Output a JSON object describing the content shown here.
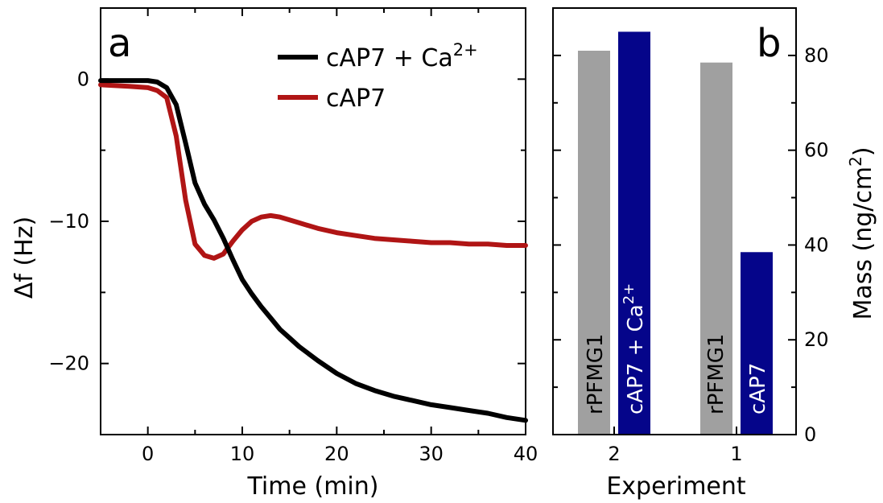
{
  "chart_data": [
    {
      "panel": "a",
      "type": "line",
      "xlabel": "Time (min)",
      "ylabel": "Δf (Hz)",
      "xlim": [
        -5,
        40
      ],
      "ylim": [
        -25,
        5
      ],
      "xticks": [
        0,
        10,
        20,
        30,
        40
      ],
      "xtick_labels": [
        "0",
        "10",
        "20",
        "30",
        "40"
      ],
      "yticks": [
        0,
        -10,
        -20
      ],
      "ytick_labels": [
        "0",
        "−10",
        "−20"
      ],
      "legend_position": "top-right",
      "series": [
        {
          "name": "cAP7 + Ca2+",
          "label_main": "cAP7 + Ca",
          "label_sup": "2+",
          "color": "#000000",
          "x": [
            -5,
            -2,
            0,
            1,
            2,
            3,
            4,
            5,
            6,
            7,
            8,
            9,
            10,
            11,
            12,
            13,
            14,
            15,
            16,
            18,
            20,
            22,
            24,
            26,
            28,
            30,
            32,
            34,
            36,
            38,
            40
          ],
          "y": [
            -0.1,
            -0.1,
            -0.1,
            -0.2,
            -0.6,
            -1.8,
            -4.5,
            -7.3,
            -8.8,
            -9.9,
            -11.2,
            -12.7,
            -14.1,
            -15.1,
            -16.0,
            -16.8,
            -17.6,
            -18.2,
            -18.8,
            -19.8,
            -20.7,
            -21.4,
            -21.9,
            -22.3,
            -22.6,
            -22.9,
            -23.1,
            -23.3,
            -23.5,
            -23.8,
            -24.0
          ]
        },
        {
          "name": "cAP7",
          "label_main": "cAP7",
          "label_sup": "",
          "color": "#b01515",
          "x": [
            -5,
            -2,
            0,
            1,
            2,
            3,
            4,
            5,
            6,
            7,
            8,
            9,
            10,
            11,
            12,
            13,
            14,
            15,
            16,
            18,
            20,
            22,
            24,
            26,
            28,
            30,
            32,
            34,
            36,
            38,
            40
          ],
          "y": [
            -0.4,
            -0.5,
            -0.6,
            -0.8,
            -1.3,
            -4.0,
            -8.5,
            -11.6,
            -12.4,
            -12.6,
            -12.3,
            -11.4,
            -10.6,
            -10.0,
            -9.7,
            -9.6,
            -9.7,
            -9.9,
            -10.1,
            -10.5,
            -10.8,
            -11.0,
            -11.2,
            -11.3,
            -11.4,
            -11.5,
            -11.5,
            -11.6,
            -11.6,
            -11.7,
            -11.7
          ]
        }
      ]
    },
    {
      "panel": "b",
      "type": "bar",
      "xlabel": "Experiment",
      "ylabel": "Mass (ng/cm",
      "ylabel_sup": "2",
      "ylabel_end": ")",
      "ylim": [
        0,
        90
      ],
      "yticks": [
        0,
        20,
        40,
        60,
        80
      ],
      "ytick_labels": [
        "0",
        "20",
        "40",
        "60",
        "80"
      ],
      "categories": [
        "2",
        "1"
      ],
      "bars": [
        {
          "group": "2",
          "label_main": "rPFMG1",
          "label_sup": "",
          "value": 81,
          "color": "#a0a0a0"
        },
        {
          "group": "2",
          "label_main": "cAP7 + Ca",
          "label_sup": "2+",
          "value": 85,
          "color": "#05058a"
        },
        {
          "group": "1",
          "label_main": "rPFMG1",
          "label_sup": "",
          "value": 78.5,
          "color": "#a0a0a0"
        },
        {
          "group": "1",
          "label_main": "cAP7",
          "label_sup": "",
          "value": 38.5,
          "color": "#05058a"
        }
      ]
    }
  ]
}
